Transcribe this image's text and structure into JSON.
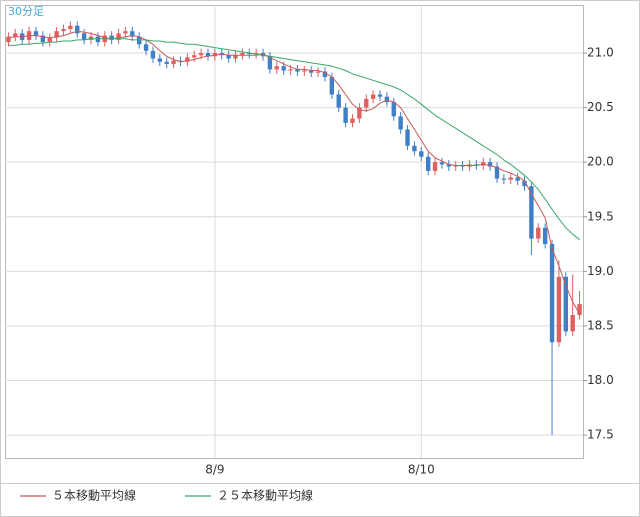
{
  "chart_data": {
    "type": "candlestick",
    "title": "30分足",
    "categories": [
      null,
      null,
      null,
      null,
      null,
      null,
      null,
      null,
      null,
      null,
      null,
      null,
      null,
      null,
      null,
      null,
      null,
      null,
      null,
      null,
      null,
      null,
      null,
      null,
      null,
      null,
      null,
      null,
      null,
      null,
      "8/9",
      null,
      null,
      null,
      null,
      null,
      null,
      null,
      null,
      null,
      null,
      null,
      null,
      null,
      null,
      null,
      null,
      null,
      null,
      null,
      null,
      null,
      null,
      null,
      null,
      null,
      null,
      null,
      null,
      null,
      "8/10",
      null,
      null,
      null,
      null,
      null,
      null,
      null,
      null,
      null,
      null,
      null,
      null,
      null,
      null,
      null,
      null,
      null,
      null,
      null,
      null,
      null,
      null,
      null
    ],
    "open": [
      21.1,
      21.15,
      21.18,
      21.12,
      21.2,
      21.16,
      21.1,
      21.14,
      21.2,
      21.22,
      21.25,
      21.18,
      21.12,
      21.15,
      21.1,
      21.16,
      21.12,
      21.18,
      21.2,
      21.15,
      21.08,
      21.02,
      20.95,
      20.92,
      20.9,
      20.93,
      20.92,
      20.96,
      20.98,
      21.0,
      20.97,
      21.0,
      20.98,
      20.95,
      20.98,
      21.0,
      20.99,
      21.0,
      20.97,
      20.85,
      20.88,
      20.84,
      20.85,
      20.83,
      20.84,
      20.82,
      20.83,
      20.78,
      20.62,
      20.5,
      20.36,
      20.4,
      20.5,
      20.58,
      20.62,
      20.6,
      20.55,
      20.42,
      20.3,
      20.15,
      20.1,
      20.05,
      19.92,
      20.0,
      19.98,
      19.96,
      19.97,
      19.96,
      19.98,
      19.97,
      20.0,
      19.96,
      19.85,
      19.84,
      19.86,
      19.83,
      19.78,
      19.3,
      19.4,
      19.25,
      18.35,
      18.95,
      18.45,
      18.6
    ],
    "high": [
      21.19,
      21.22,
      21.22,
      21.24,
      21.24,
      21.2,
      21.18,
      21.24,
      21.26,
      21.29,
      21.29,
      21.22,
      21.19,
      21.19,
      21.2,
      21.2,
      21.22,
      21.24,
      21.24,
      21.19,
      21.12,
      21.06,
      20.99,
      20.96,
      20.97,
      20.97,
      21.0,
      21.02,
      21.04,
      21.04,
      21.04,
      21.04,
      21.02,
      21.02,
      21.04,
      21.04,
      21.04,
      21.04,
      21.01,
      20.92,
      20.92,
      20.89,
      20.89,
      20.88,
      20.88,
      20.87,
      20.87,
      20.82,
      20.66,
      20.54,
      20.44,
      20.54,
      20.62,
      20.66,
      20.66,
      20.64,
      20.59,
      20.46,
      20.34,
      20.19,
      20.14,
      20.09,
      20.04,
      20.04,
      20.02,
      20.01,
      20.01,
      20.02,
      20.02,
      20.04,
      20.04,
      20.0,
      19.89,
      19.9,
      19.9,
      19.87,
      19.82,
      19.44,
      19.44,
      19.29,
      19.1,
      18.99,
      18.97,
      18.82
    ],
    "low": [
      21.06,
      21.11,
      21.08,
      21.08,
      21.12,
      21.06,
      21.06,
      21.1,
      21.16,
      21.18,
      21.14,
      21.08,
      21.08,
      21.06,
      21.06,
      21.08,
      21.08,
      21.14,
      21.11,
      21.04,
      20.98,
      20.91,
      20.88,
      20.86,
      20.86,
      20.88,
      20.88,
      20.92,
      20.94,
      20.93,
      20.93,
      20.94,
      20.91,
      20.91,
      20.94,
      20.95,
      20.95,
      20.93,
      20.81,
      20.81,
      20.8,
      20.8,
      20.79,
      20.79,
      20.78,
      20.78,
      20.74,
      20.58,
      20.46,
      20.32,
      20.32,
      20.36,
      20.46,
      20.54,
      20.56,
      20.51,
      20.38,
      20.26,
      20.11,
      20.06,
      20.01,
      19.88,
      19.88,
      19.94,
      19.92,
      19.92,
      19.92,
      19.92,
      19.93,
      19.93,
      19.92,
      19.81,
      19.8,
      19.8,
      19.79,
      19.74,
      19.15,
      19.26,
      19.21,
      17.5,
      18.31,
      18.41,
      18.41,
      18.56
    ],
    "close": [
      21.15,
      21.18,
      21.12,
      21.2,
      21.16,
      21.1,
      21.14,
      21.2,
      21.22,
      21.25,
      21.18,
      21.12,
      21.15,
      21.1,
      21.16,
      21.12,
      21.18,
      21.2,
      21.15,
      21.08,
      21.02,
      20.95,
      20.92,
      20.9,
      20.93,
      20.92,
      20.96,
      20.98,
      21.0,
      20.97,
      21.0,
      20.98,
      20.95,
      20.98,
      21.0,
      20.99,
      21.0,
      20.97,
      20.85,
      20.88,
      20.84,
      20.85,
      20.83,
      20.84,
      20.82,
      20.83,
      20.78,
      20.62,
      20.5,
      20.36,
      20.4,
      20.5,
      20.58,
      20.62,
      20.6,
      20.55,
      20.42,
      20.3,
      20.15,
      20.1,
      20.05,
      19.92,
      20.0,
      19.98,
      19.96,
      19.97,
      19.96,
      19.98,
      19.97,
      20.0,
      19.96,
      19.85,
      19.84,
      19.86,
      19.83,
      19.78,
      19.3,
      19.4,
      19.25,
      18.35,
      18.95,
      18.45,
      18.6,
      18.7
    ],
    "up_color": "#e06060",
    "down_color": "#3f7fc6",
    "series": [
      {
        "name": "５本移動平均線",
        "color": "#c85a5a",
        "values": [
          21.14,
          21.15,
          21.15,
          21.16,
          21.16,
          21.15,
          21.14,
          21.15,
          21.16,
          21.18,
          21.2,
          21.19,
          21.18,
          21.16,
          21.14,
          21.13,
          21.14,
          21.15,
          21.16,
          21.15,
          21.12,
          21.08,
          21.02,
          20.97,
          20.94,
          20.92,
          20.93,
          20.94,
          20.96,
          20.97,
          20.98,
          20.99,
          20.98,
          20.98,
          20.98,
          20.98,
          20.98,
          20.99,
          20.96,
          20.93,
          20.9,
          20.87,
          20.85,
          20.85,
          20.84,
          20.84,
          20.82,
          20.78,
          20.71,
          20.62,
          20.53,
          20.48,
          20.47,
          20.49,
          20.54,
          20.57,
          20.55,
          20.5,
          20.4,
          20.3,
          20.2,
          20.1,
          20.04,
          20.01,
          19.98,
          19.97,
          19.97,
          19.97,
          19.97,
          19.98,
          19.97,
          19.95,
          19.92,
          19.9,
          19.87,
          19.83,
          19.71,
          19.6,
          19.49,
          19.21,
          19.05,
          18.87,
          18.72,
          18.61
        ]
      },
      {
        "name": "２５本移動平均線",
        "color": "#3aa86a",
        "values": [
          21.07,
          21.07,
          21.08,
          21.08,
          21.09,
          21.09,
          21.1,
          21.1,
          21.11,
          21.11,
          21.12,
          21.12,
          21.13,
          21.13,
          21.13,
          21.13,
          21.13,
          21.13,
          21.12,
          21.12,
          21.12,
          21.11,
          21.11,
          21.1,
          21.1,
          21.09,
          21.08,
          21.08,
          21.07,
          21.06,
          21.05,
          21.04,
          21.03,
          21.02,
          21.01,
          21.0,
          20.99,
          20.98,
          20.97,
          20.96,
          20.95,
          20.94,
          20.93,
          20.92,
          20.91,
          20.9,
          20.89,
          20.88,
          20.86,
          20.84,
          20.81,
          20.79,
          20.77,
          20.75,
          20.73,
          20.71,
          20.69,
          20.66,
          20.62,
          20.58,
          20.53,
          20.48,
          20.43,
          20.39,
          20.35,
          20.31,
          20.27,
          20.23,
          20.19,
          20.15,
          20.11,
          20.07,
          20.02,
          19.98,
          19.93,
          19.88,
          19.82,
          19.75,
          19.66,
          19.57,
          19.48,
          19.4,
          19.34,
          19.29
        ]
      }
    ],
    "ylim": [
      17.29,
      21.44
    ],
    "yticks": [
      17.5,
      {
        "value": 18,
        "label": "18.0"
      },
      18.5,
      {
        "value": 19,
        "label": "19.0"
      },
      19.5,
      {
        "value": 20,
        "label": "20.0"
      },
      20.5,
      {
        "value": 21,
        "label": "21.0"
      }
    ],
    "grid": true
  }
}
